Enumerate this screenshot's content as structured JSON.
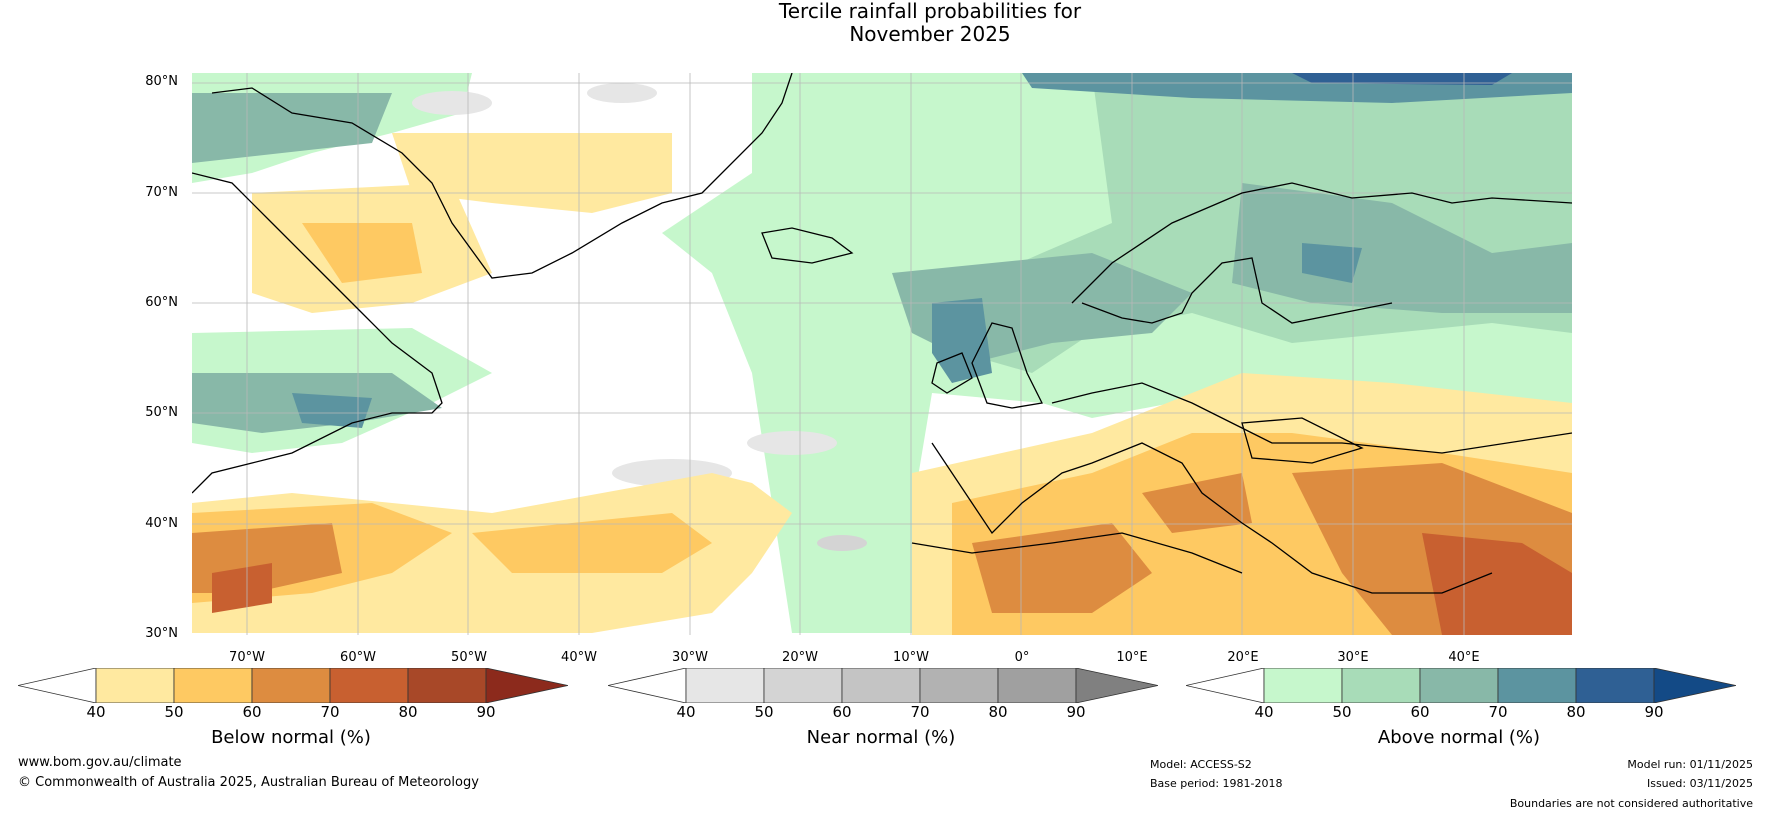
{
  "title": {
    "line1": "Tercile rainfall probabilities for",
    "line2": "November 2025"
  },
  "map": {
    "lat_labels": [
      "80°N",
      "70°N",
      "60°N",
      "50°N",
      "40°N",
      "30°N"
    ],
    "lon_labels": [
      "70°W",
      "60°W",
      "50°W",
      "40°W",
      "30°W",
      "20°W",
      "10°W",
      "0°",
      "10°E",
      "20°E",
      "30°E",
      "40°E"
    ]
  },
  "colorbars": [
    {
      "label": "Below normal (%)",
      "ticks": [
        "40",
        "50",
        "60",
        "70",
        "80",
        "90"
      ],
      "colors": [
        "#ffffff",
        "#ffe9a0",
        "#fec962",
        "#dd8c40",
        "#c86030",
        "#a84828",
        "#8c2a1c"
      ]
    },
    {
      "label": "Near normal (%)",
      "ticks": [
        "40",
        "50",
        "60",
        "70",
        "80",
        "90"
      ],
      "colors": [
        "#ffffff",
        "#e6e6e6",
        "#d4d4d4",
        "#c4c4c4",
        "#b2b2b2",
        "#a0a0a0",
        "#808080"
      ]
    },
    {
      "label": "Above normal (%)",
      "ticks": [
        "40",
        "50",
        "60",
        "70",
        "80",
        "90"
      ],
      "colors": [
        "#ffffff",
        "#c6f7cc",
        "#a8dcb8",
        "#88b8a8",
        "#5c94a0",
        "#2f6094",
        "#134a86"
      ]
    }
  ],
  "footer": {
    "url": "www.bom.gov.au/climate",
    "copyright": "© Commonwealth of Australia 2025, Australian Bureau of Meteorology",
    "model": "Model: ACCESS-S2",
    "base_period": "Base period: 1981-2018",
    "model_run": "Model run: 01/11/2025",
    "issued": "Issued: 03/11/2025",
    "boundaries": "Boundaries are not considered authoritative"
  }
}
